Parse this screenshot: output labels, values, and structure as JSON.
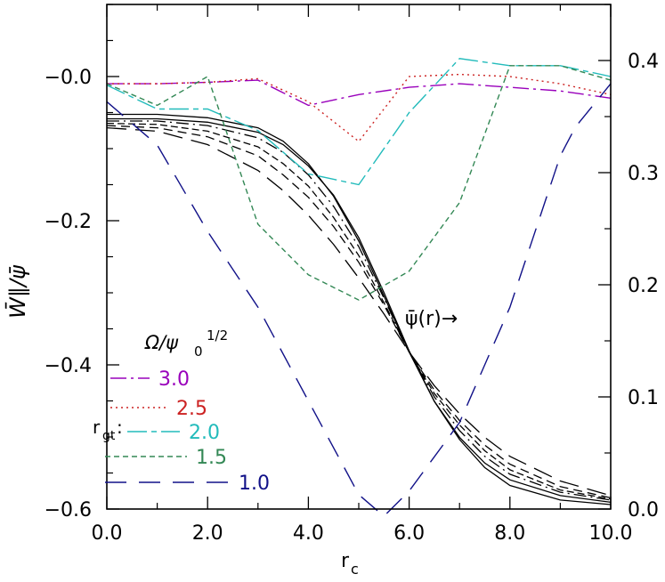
{
  "chart_data": {
    "type": "line",
    "xlabel": "r",
    "xlabel_sub": "c",
    "ylabel_left": "W̄∥/ψ̄",
    "xlim": [
      0,
      10
    ],
    "ylim_left": [
      -0.6,
      0.1
    ],
    "ylim_right": [
      0,
      0.45
    ],
    "x_ticks": [
      "0.0",
      "2.0",
      "4.0",
      "6.0",
      "8.0",
      "10.0"
    ],
    "y_left_ticks": [
      {
        "value": 0.0,
        "label": "−0.0"
      },
      {
        "value": -0.2,
        "label": "−0.2"
      },
      {
        "value": -0.4,
        "label": "−0.4"
      },
      {
        "value": -0.6,
        "label": "−0.6"
      }
    ],
    "y_right_ticks": [
      {
        "value": 0.0,
        "label": "0.0"
      },
      {
        "value": 0.1,
        "label": "0.1"
      },
      {
        "value": 0.2,
        "label": "0.2"
      },
      {
        "value": 0.3,
        "label": "0.3"
      },
      {
        "value": 0.4,
        "label": "0.4"
      }
    ],
    "grid": false,
    "legend_title": "Ω/ψ",
    "legend_title_sub": "0",
    "legend_title_sup": "1/2",
    "legend_prefix": "r",
    "legend_prefix_sub": "gt",
    "legend_prefix_colon": ":",
    "series": [
      {
        "name": "3.0",
        "color": "#9900bb",
        "dash": "dashdot",
        "axis": "left",
        "x": [
          0,
          1,
          2,
          3,
          4,
          5,
          6,
          7,
          8,
          9,
          10
        ],
        "y": [
          -0.01,
          -0.01,
          -0.008,
          -0.005,
          -0.04,
          -0.025,
          -0.015,
          -0.01,
          -0.015,
          -0.02,
          -0.03
        ]
      },
      {
        "name": "2.5",
        "color": "#cc2222",
        "dash": "dotted",
        "axis": "left",
        "x": [
          0,
          1,
          2,
          3,
          4,
          5,
          6,
          7,
          8,
          9,
          10
        ],
        "y": [
          -0.01,
          -0.01,
          -0.008,
          -0.003,
          -0.035,
          -0.09,
          0.0,
          0.003,
          0.0,
          -0.01,
          -0.025
        ]
      },
      {
        "name": "2.0",
        "color": "#22bbbb",
        "dash": "dashlongshort",
        "axis": "left",
        "x": [
          0,
          1,
          2,
          3,
          4,
          5,
          6,
          7,
          8,
          9,
          10
        ],
        "y": [
          -0.012,
          -0.045,
          -0.045,
          -0.075,
          -0.135,
          -0.15,
          -0.05,
          0.025,
          0.015,
          0.015,
          0.0
        ]
      },
      {
        "name": "1.5",
        "color": "#338855",
        "dash": "shortdash",
        "axis": "left",
        "x": [
          0,
          1,
          2,
          3,
          4,
          5,
          6,
          7,
          8,
          9,
          10
        ],
        "y": [
          -0.01,
          -0.04,
          0.0,
          -0.205,
          -0.275,
          -0.31,
          -0.27,
          -0.175,
          0.015,
          0.015,
          -0.005
        ]
      },
      {
        "name": "1.0",
        "color": "#111188",
        "dash": "longdash",
        "axis": "left",
        "x": [
          0,
          1,
          2,
          3,
          4,
          5,
          5.5,
          6,
          7,
          8,
          9,
          9.3,
          10
        ],
        "y": [
          -0.035,
          -0.095,
          -0.215,
          -0.32,
          -0.45,
          -0.58,
          -0.61,
          -0.575,
          -0.48,
          -0.32,
          -0.11,
          -0.07,
          -0.01
        ]
      }
    ],
    "psi_curves": {
      "axis": "right",
      "x": [
        0,
        1,
        2,
        3,
        3.5,
        4,
        4.5,
        5,
        5.5,
        6,
        6.5,
        7,
        7.5,
        8,
        9,
        10
      ],
      "profiles": [
        {
          "y": [
            0.352,
            0.352,
            0.349,
            0.34,
            0.328,
            0.308,
            0.279,
            0.239,
            0.19,
            0.14,
            0.096,
            0.062,
            0.037,
            0.021,
            0.008,
            0.004
          ]
        },
        {
          "y": [
            0.348,
            0.348,
            0.345,
            0.336,
            0.325,
            0.306,
            0.28,
            0.242,
            0.193,
            0.141,
            0.096,
            0.064,
            0.041,
            0.026,
            0.012,
            0.006
          ]
        },
        {
          "y": [
            0.346,
            0.346,
            0.342,
            0.331,
            0.318,
            0.298,
            0.27,
            0.234,
            0.188,
            0.14,
            0.1,
            0.07,
            0.047,
            0.031,
            0.015,
            0.008
          ]
        },
        {
          "y": [
            0.344,
            0.343,
            0.337,
            0.323,
            0.308,
            0.288,
            0.26,
            0.226,
            0.184,
            0.14,
            0.103,
            0.075,
            0.052,
            0.035,
            0.017,
            0.009
          ]
        },
        {
          "y": [
            0.342,
            0.34,
            0.332,
            0.315,
            0.298,
            0.278,
            0.252,
            0.22,
            0.182,
            0.14,
            0.106,
            0.079,
            0.057,
            0.04,
            0.02,
            0.01
          ]
        },
        {
          "y": [
            0.34,
            0.337,
            0.325,
            0.302,
            0.284,
            0.262,
            0.236,
            0.206,
            0.174,
            0.14,
            0.11,
            0.085,
            0.064,
            0.047,
            0.025,
            0.012
          ]
        }
      ]
    },
    "annotation": "ψ̄(r)→"
  }
}
